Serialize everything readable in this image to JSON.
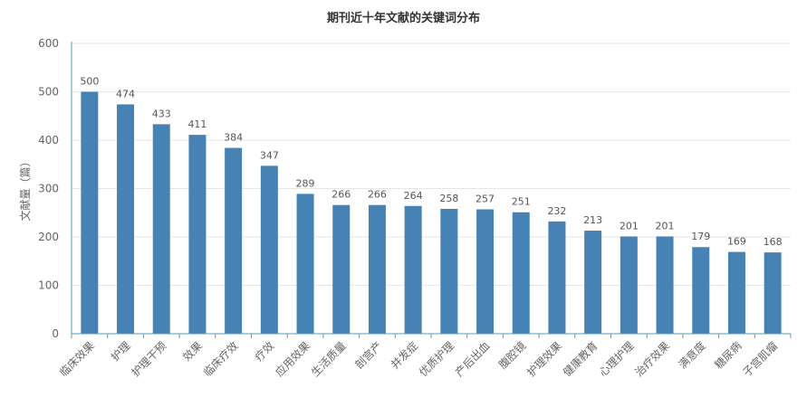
{
  "chart_data": {
    "type": "bar",
    "title": "期刊近十年文献的关键词分布",
    "xlabel": "",
    "ylabel": "文献量（篇）",
    "ylim": [
      0,
      600
    ],
    "yticks": [
      0,
      100,
      200,
      300,
      400,
      500,
      600
    ],
    "grid": true,
    "legend": "none",
    "bar_color": "#4682b4",
    "categories": [
      "临床效果",
      "护理",
      "护理干预",
      "效果",
      "临床疗效",
      "疗效",
      "应用效果",
      "生活质量",
      "剖宫产",
      "并发症",
      "优质护理",
      "产后出血",
      "腹腔镜",
      "护理效果",
      "健康教育",
      "心理护理",
      "治疗效果",
      "满意度",
      "糖尿病",
      "子宫肌瘤"
    ],
    "values": [
      500,
      474,
      433,
      411,
      384,
      347,
      289,
      266,
      266,
      264,
      258,
      257,
      251,
      232,
      213,
      201,
      201,
      179,
      169,
      168
    ]
  }
}
